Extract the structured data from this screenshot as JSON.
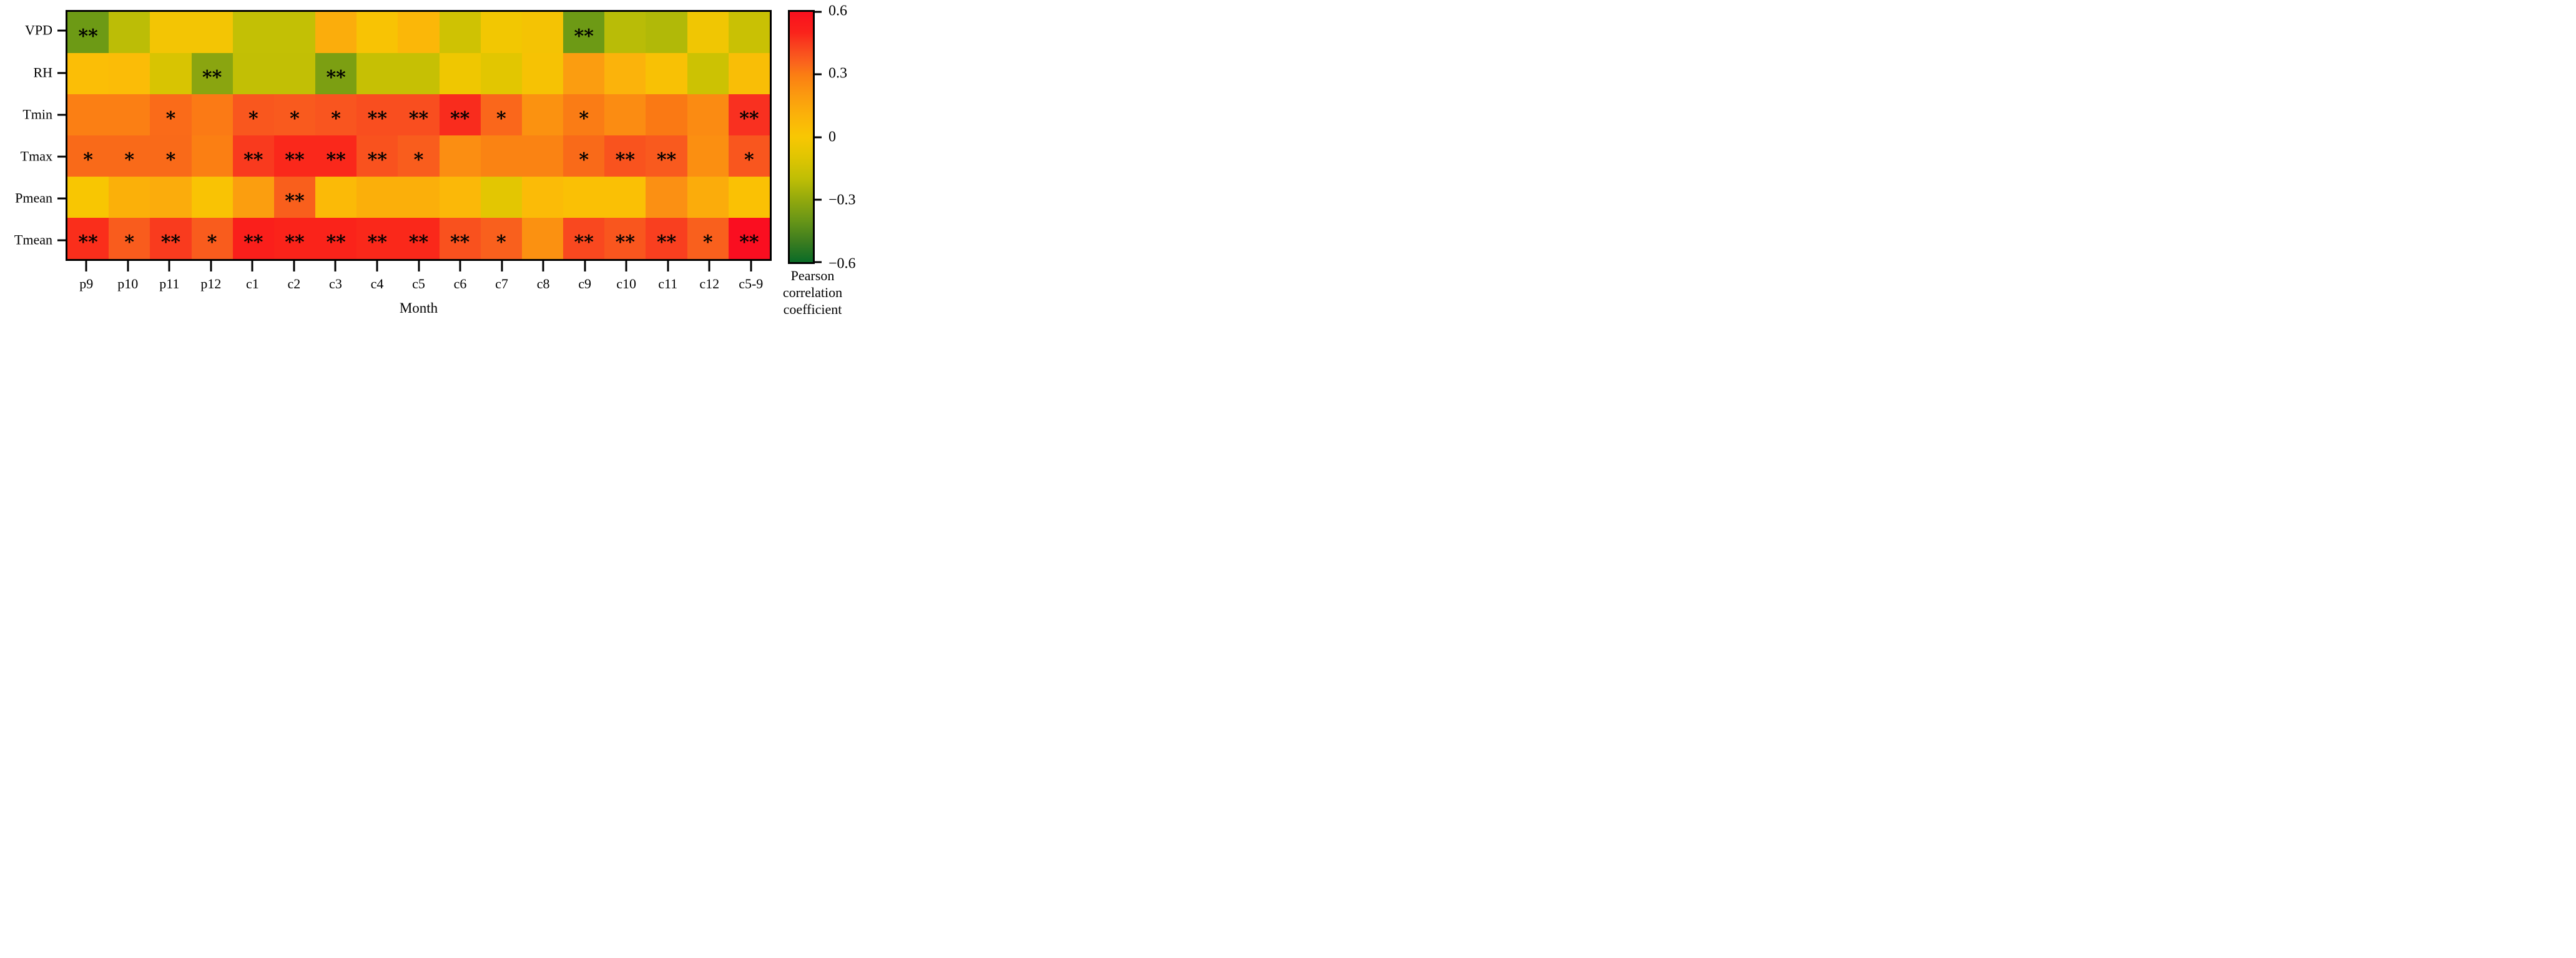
{
  "chart_data": {
    "type": "heatmap",
    "title": "",
    "xlabel": "Month",
    "ylabel": "",
    "legend_position": "right-colorbar",
    "grid": false,
    "categories_x": [
      "p9",
      "p10",
      "p11",
      "p12",
      "c1",
      "c2",
      "c3",
      "c4",
      "c5",
      "c6",
      "c7",
      "c8",
      "c9",
      "c10",
      "c11",
      "c12",
      "c5-9"
    ],
    "categories_y": [
      "VPD",
      "RH",
      "Tmin",
      "Tmax",
      "Pmean",
      "Tmean"
    ],
    "significance_legend": {
      "single": "*",
      "double": "**"
    },
    "rows": [
      {
        "label": "VPD",
        "values": [
          -0.41,
          -0.2,
          -0.02,
          -0.02,
          -0.17,
          -0.17,
          0.14,
          0.01,
          0.08,
          -0.15,
          -0.03,
          0.0,
          -0.41,
          -0.21,
          -0.24,
          -0.04,
          -0.16
        ],
        "colors": [
          "#6d9a15",
          "#bcbd06",
          "#f3c504",
          "#f3c504",
          "#c3c005",
          "#c3c005",
          "#fbad0c",
          "#f8c304",
          "#fbb708",
          "#cfc203",
          "#f2c702",
          "#f4c304",
          "#6d9a15",
          "#b9bc07",
          "#b1b908",
          "#f0c603",
          "#c9c104"
        ],
        "sig": [
          "**",
          "",
          "",
          "",
          "",
          "",
          "",
          "",
          "",
          "",
          "",
          "",
          "**",
          "",
          "",
          "",
          ""
        ]
      },
      {
        "label": "RH",
        "values": [
          0.05,
          0.06,
          -0.11,
          -0.33,
          -0.18,
          -0.18,
          -0.37,
          -0.16,
          -0.16,
          -0.05,
          -0.09,
          0.02,
          0.18,
          0.1,
          0.04,
          -0.15,
          0.06
        ],
        "colors": [
          "#fbbe06",
          "#fbbc07",
          "#d8c402",
          "#8aa510",
          "#c2bf05",
          "#c2bf05",
          "#7c9f12",
          "#c6c004",
          "#c6c004",
          "#efc701",
          "#e2c601",
          "#f6c204",
          "#fb9d10",
          "#fbb30b",
          "#f8c105",
          "#ccc203",
          "#f9be06"
        ],
        "sig": [
          "",
          "",
          "",
          "**",
          "",
          "",
          "**",
          "",
          "",
          "",
          "",
          "",
          "",
          "",
          "",
          "",
          ""
        ]
      },
      {
        "label": "Tmin",
        "values": [
          0.29,
          0.29,
          0.34,
          0.3,
          0.38,
          0.38,
          0.39,
          0.4,
          0.4,
          0.47,
          0.35,
          0.21,
          0.3,
          0.24,
          0.3,
          0.24,
          0.46
        ],
        "colors": [
          "#fb7f14",
          "#fb7f14",
          "#fa6b19",
          "#fb7a15",
          "#f9571e",
          "#f95a1e",
          "#f9551f",
          "#f94e1f",
          "#f94e1f",
          "#f92c1d",
          "#fa671b",
          "#fb9210",
          "#fa7c15",
          "#fb8c12",
          "#fa7914",
          "#fb8b12",
          "#f93020"
        ],
        "sig": [
          "",
          "",
          "*",
          "",
          "*",
          "*",
          "*",
          "**",
          "**",
          "**",
          "*",
          "",
          "*",
          "",
          "",
          "",
          "**"
        ]
      },
      {
        "label": "Tmax",
        "values": [
          0.34,
          0.34,
          0.34,
          0.29,
          0.44,
          0.48,
          0.48,
          0.4,
          0.37,
          0.23,
          0.27,
          0.27,
          0.34,
          0.4,
          0.37,
          0.23,
          0.39
        ],
        "colors": [
          "#f96a19",
          "#f96a19",
          "#f96a19",
          "#fb7f13",
          "#f93a1e",
          "#fa281b",
          "#fa281b",
          "#f9521e",
          "#f95d1d",
          "#fb8e12",
          "#fa8313",
          "#fa8313",
          "#f96a19",
          "#f9531e",
          "#f95a1e",
          "#fb8f11",
          "#f9561e"
        ],
        "sig": [
          "*",
          "*",
          "*",
          "",
          "**",
          "**",
          "**",
          "**",
          "*",
          "",
          "",
          "",
          "*",
          "**",
          "**",
          "",
          "*"
        ]
      },
      {
        "label": "Pmean",
        "values": [
          0.01,
          0.11,
          0.13,
          0.03,
          0.17,
          0.36,
          0.08,
          0.11,
          0.11,
          0.08,
          -0.06,
          0.07,
          0.05,
          0.05,
          0.21,
          0.12,
          0.04
        ],
        "colors": [
          "#f8c602",
          "#fbb009",
          "#fbac0c",
          "#f9c304",
          "#fb9e0f",
          "#f95f1c",
          "#fbba07",
          "#fbaf0a",
          "#fbaf0a",
          "#fbb808",
          "#e3c602",
          "#fbbb07",
          "#fac005",
          "#fac005",
          "#fb9013",
          "#fbac0b",
          "#fac104"
        ],
        "sig": [
          "",
          "",
          "",
          "",
          "",
          "**",
          "",
          "",
          "",
          "",
          "",
          "",
          "",
          "",
          "",
          "",
          ""
        ]
      },
      {
        "label": "Tmean",
        "values": [
          0.47,
          0.37,
          0.44,
          0.37,
          0.51,
          0.49,
          0.49,
          0.48,
          0.48,
          0.4,
          0.36,
          0.22,
          0.42,
          0.38,
          0.43,
          0.36,
          0.54
        ],
        "colors": [
          "#fa2e1b",
          "#f95c1d",
          "#f93b1e",
          "#f95c1d",
          "#fa1f1b",
          "#fa231a",
          "#fa231a",
          "#fa281a",
          "#fa281a",
          "#f9511e",
          "#f9601d",
          "#fb9111",
          "#f9481f",
          "#f9561e",
          "#f93f1f",
          "#f9601d",
          "#fa0e20"
        ],
        "sig": [
          "**",
          "*",
          "**",
          "*",
          "**",
          "**",
          "**",
          "**",
          "**",
          "**",
          "*",
          "",
          "**",
          "**",
          "**",
          "*",
          "**"
        ]
      }
    ],
    "colorbar": {
      "min": -0.6,
      "max": 0.6,
      "ticks": [
        "0.6",
        "0.3",
        "0",
        "−0.3",
        "−0.6"
      ],
      "caption_lines": [
        "Pearson",
        "correlation",
        "coefficient"
      ],
      "gradient": [
        {
          "v": 0.6,
          "c": "#f9101e"
        },
        {
          "v": 0.5,
          "c": "#fa231b"
        },
        {
          "v": 0.45,
          "c": "#f93c1e"
        },
        {
          "v": 0.4,
          "c": "#f9521e"
        },
        {
          "v": 0.35,
          "c": "#fa661c"
        },
        {
          "v": 0.3,
          "c": "#fb7d13"
        },
        {
          "v": 0.2,
          "c": "#fb9a0f"
        },
        {
          "v": 0.1,
          "c": "#fbb309"
        },
        {
          "v": 0.0,
          "c": "#f8c703"
        },
        {
          "v": -0.1,
          "c": "#dfc502"
        },
        {
          "v": -0.2,
          "c": "#bfbe05"
        },
        {
          "v": -0.3,
          "c": "#93a90d"
        },
        {
          "v": -0.4,
          "c": "#699617"
        },
        {
          "v": -0.5,
          "c": "#3d7d1f"
        },
        {
          "v": -0.6,
          "c": "#0a6b27"
        }
      ]
    }
  }
}
